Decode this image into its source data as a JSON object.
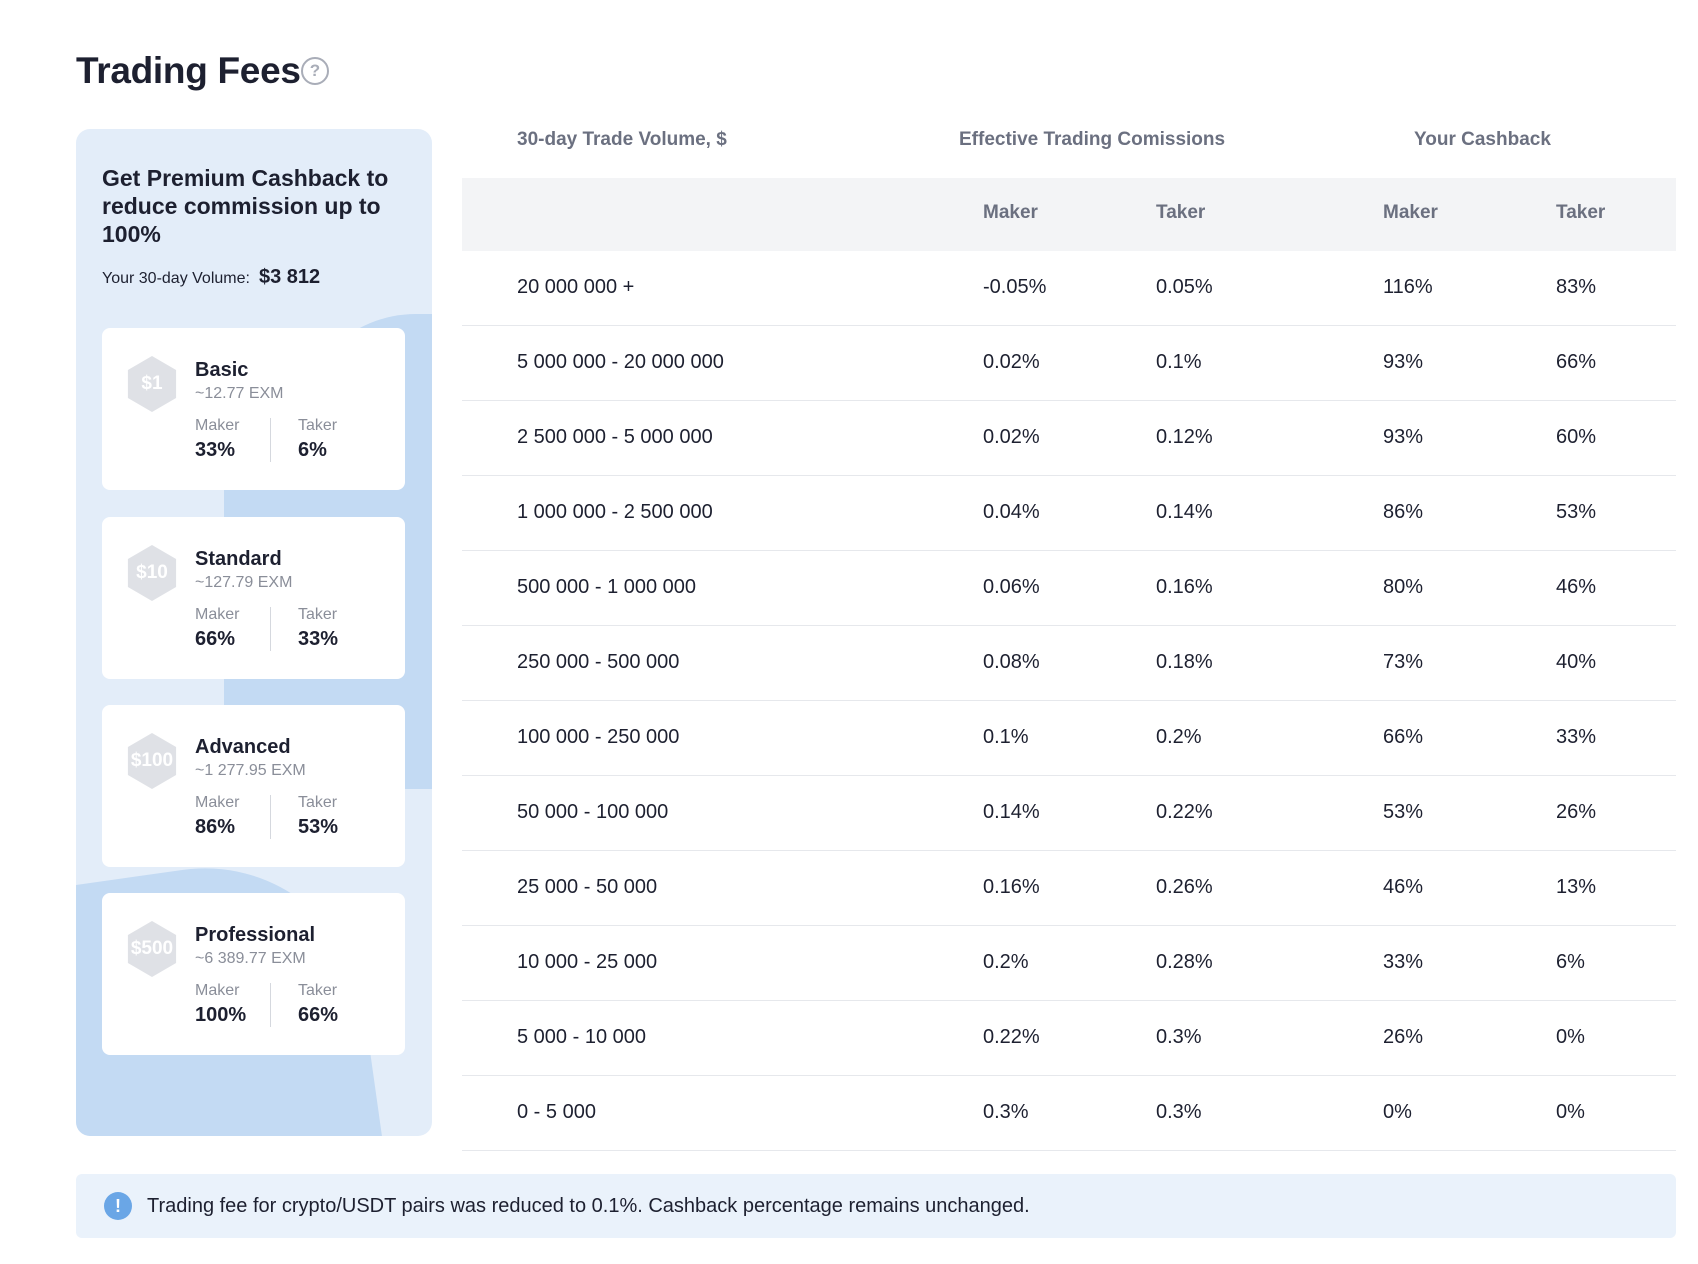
{
  "page": {
    "title": "Trading Fees",
    "help_icon": "question-circle-icon"
  },
  "sidebar": {
    "heading": "Get Premium Cashback to reduce commission up to 100%",
    "volume_label": "Your 30-day Volume:",
    "volume_value": "$3 812",
    "plans": [
      {
        "badge": "$1",
        "name": "Basic",
        "exm": "~12.77 EXM",
        "maker_label": "Maker",
        "maker": "33%",
        "taker_label": "Taker",
        "taker": "6%"
      },
      {
        "badge": "$10",
        "name": "Standard",
        "exm": "~127.79 EXM",
        "maker_label": "Maker",
        "maker": "66%",
        "taker_label": "Taker",
        "taker": "33%"
      },
      {
        "badge": "$100",
        "name": "Advanced",
        "exm": "~1 277.95 EXM",
        "maker_label": "Maker",
        "maker": "86%",
        "taker_label": "Taker",
        "taker": "53%"
      },
      {
        "badge": "$500",
        "name": "Professional",
        "exm": "~6 389.77 EXM",
        "maker_label": "Maker",
        "maker": "100%",
        "taker_label": "Taker",
        "taker": "66%"
      }
    ]
  },
  "table": {
    "headers": {
      "volume": "30-day Trade Volume, $",
      "commissions": "Effective Trading Comissions",
      "cashback": "Your Cashback"
    },
    "sub_headers": [
      "Maker",
      "Taker",
      "Maker",
      "Taker"
    ],
    "rows": [
      [
        "20 000 000 +",
        "-0.05%",
        "0.05%",
        "116%",
        "83%"
      ],
      [
        "5 000 000 - 20 000 000",
        "0.02%",
        "0.1%",
        "93%",
        "66%"
      ],
      [
        "2 500 000 - 5 000 000",
        "0.02%",
        "0.12%",
        "93%",
        "60%"
      ],
      [
        "1 000 000 - 2 500 000",
        "0.04%",
        "0.14%",
        "86%",
        "53%"
      ],
      [
        "500 000 - 1 000 000",
        "0.06%",
        "0.16%",
        "80%",
        "46%"
      ],
      [
        "250 000 - 500 000",
        "0.08%",
        "0.18%",
        "73%",
        "40%"
      ],
      [
        "100 000 - 250 000",
        "0.1%",
        "0.2%",
        "66%",
        "33%"
      ],
      [
        "50 000 - 100 000",
        "0.14%",
        "0.22%",
        "53%",
        "26%"
      ],
      [
        "25 000 - 50 000",
        "0.16%",
        "0.26%",
        "46%",
        "13%"
      ],
      [
        "10 000 - 25 000",
        "0.2%",
        "0.28%",
        "33%",
        "6%"
      ],
      [
        "5 000 - 10 000",
        "0.22%",
        "0.3%",
        "26%",
        "0%"
      ],
      [
        "0 - 5 000",
        "0.3%",
        "0.3%",
        "0%",
        "0%"
      ]
    ]
  },
  "notice": {
    "icon": "exclamation-circle-icon",
    "text": "Trading fee for crypto/USDT pairs was reduced to 0.1%. Cashback percentage remains unchanged."
  },
  "colors": {
    "sidebar_bg": "#e3edf9",
    "sidebar_accent": "#c3daf3",
    "notice_bg": "#eaf2fb",
    "notice_icon": "#6aa6e6",
    "header_text": "#6b7080"
  }
}
